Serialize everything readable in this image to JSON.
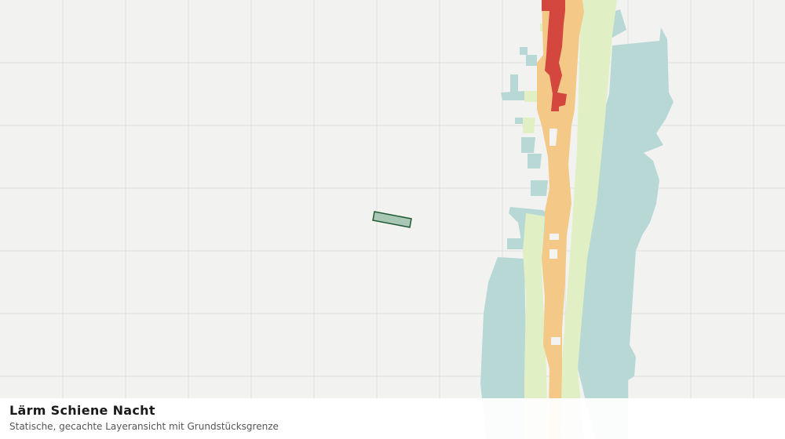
{
  "layer": {
    "title": "Lärm Schiene Nacht",
    "subtitle": "Statische, gecachte Layeransicht mit Grundstücksgrenze"
  }
}
